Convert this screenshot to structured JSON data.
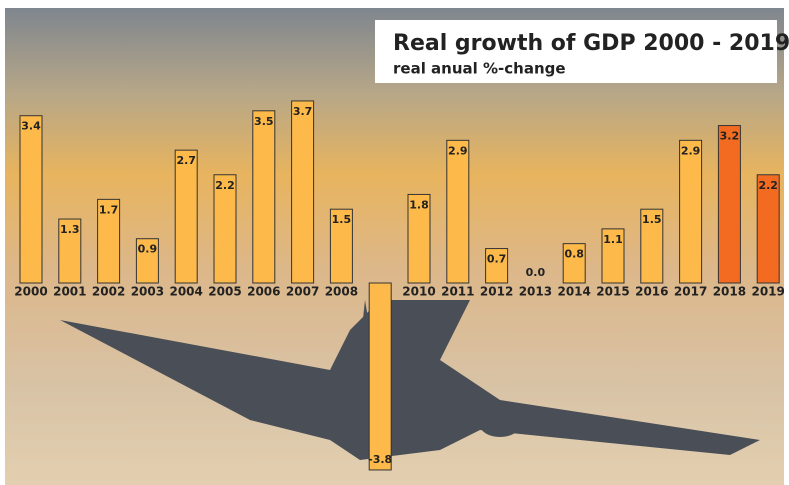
{
  "chart_data": {
    "type": "bar",
    "title": "Real growth of GDP 2000 - 2019",
    "subtitle": "real anual %-change",
    "categories": [
      "2000",
      "2001",
      "2002",
      "2003",
      "2004",
      "2005",
      "2006",
      "2007",
      "2008",
      null,
      "2010",
      "2011",
      "2012",
      "2013",
      "2014",
      "2015",
      "2016",
      "2017",
      "2018",
      "2019"
    ],
    "values": [
      3.4,
      1.3,
      1.7,
      0.9,
      2.7,
      2.2,
      3.5,
      3.7,
      1.5,
      -3.8,
      1.8,
      2.9,
      0.7,
      0.0,
      0.8,
      1.1,
      1.5,
      2.9,
      3.2,
      2.2
    ],
    "value_labels": [
      "3.4",
      "1.3",
      "1.7",
      "0.9",
      "2.7",
      "2.2",
      "3.5",
      "3.7",
      "1.5",
      "-3.8",
      "1.8",
      "2.9",
      "0.7",
      "0.0",
      "0.8",
      "1.1",
      "1.5",
      "2.9",
      "3.2",
      "2.2"
    ],
    "colors": [
      "#fdb94a",
      "#fdb94a",
      "#fdb94a",
      "#fdb94a",
      "#fdb94a",
      "#fdb94a",
      "#fdb94a",
      "#fdb94a",
      "#fdb94a",
      "#fdb94a",
      "#fdb94a",
      "#fdb94a",
      "#fdb94a",
      "#fdb94a",
      "#fdb94a",
      "#fdb94a",
      "#fdb94a",
      "#fdb94a",
      "#f26b21",
      "#f26b21"
    ]
  }
}
